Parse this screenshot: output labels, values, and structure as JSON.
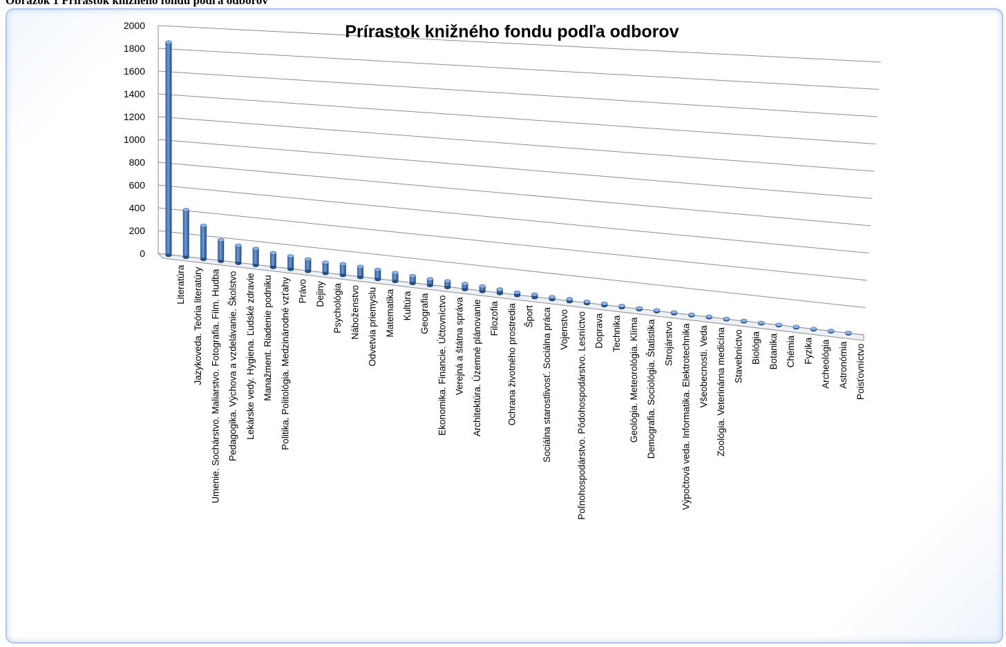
{
  "caption": "Obrázok 1 Prírastok knižného fondu podľa odborov",
  "chart_data": {
    "type": "bar",
    "title": "Prírastok knižného fondu podľa odborov",
    "xlabel": "",
    "ylabel": "",
    "ylim": [
      0,
      2000
    ],
    "yticks": [
      0,
      200,
      400,
      600,
      800,
      1000,
      1200,
      1400,
      1600,
      1800,
      2000
    ],
    "grid": true,
    "legend": "none",
    "bar_color": "#4f81bd",
    "categories": [
      "Literatúra",
      "Jazykoveda. Teória literatúry",
      "Umenie. Sochárstvo. Maliarstvo. Fotografia. Film. Hudba",
      "Pedagogika. Výchova a vzdelávanie. Školstvo",
      "Lekárske vedy. Hygiena. Ľudské zdravie",
      "Manažment. Riadenie podniku",
      "Politika. Politológia. Medzinárodné vzťahy",
      "Právo",
      "Dejiny",
      "Psychológia",
      "Náboženstvo",
      "Odvetvia priemyslu",
      "Matematika",
      "Kultúra",
      "Geografia",
      "Ekonomika. Financie. Účtovníctvo",
      "Verejná a štátna správa",
      "Architektúra. Územné plánovanie",
      "Filozofia",
      "Ochrana životného prostredia",
      "Šport",
      "Sociálna starostlivosť. Sociálna práca",
      "Vojenstvo",
      "Poľnohospodárstvo. Pôdohospodárstvo. Lesníctvo",
      "Doprava",
      "Technika",
      "Geológia. Meteorológia. Klíma",
      "Demografia. Sociológia. Štatistika",
      "Strojárstvo",
      "Výpočtová veda. Informatika. Elektrotechnika",
      "Všeobecnosti. Veda",
      "Zoológia. Veterinárna medicína",
      "Stavebníctvo",
      "Biológia",
      "Botanika",
      "Chémia",
      "Fyzika",
      "Archeológia",
      "Astronómia",
      "Poisťovníctvo"
    ],
    "values": [
      1880,
      420,
      300,
      190,
      160,
      150,
      130,
      120,
      110,
      100,
      105,
      100,
      90,
      80,
      70,
      60,
      60,
      55,
      50,
      40,
      30,
      30,
      25,
      25,
      20,
      20,
      18,
      15,
      15,
      15,
      12,
      12,
      10,
      10,
      10,
      8,
      6,
      5,
      3,
      2
    ]
  }
}
